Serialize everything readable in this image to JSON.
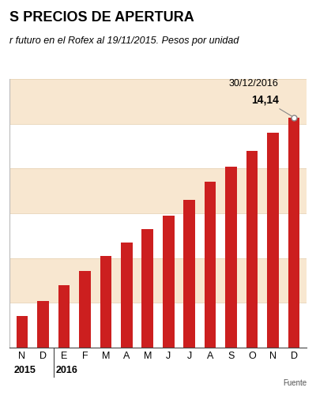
{
  "chart_data": {
    "type": "bar",
    "title": "S PRECIOS DE APERTURA",
    "subtitle": "r futuro en el Rofex al 19/11/2015. Pesos por unidad",
    "source": "Fuente",
    "categories": [
      "N",
      "D",
      "E",
      "F",
      "M",
      "A",
      "M",
      "J",
      "J",
      "A",
      "S",
      "O",
      "N",
      "D"
    ],
    "values": [
      9.7,
      10.05,
      10.4,
      10.72,
      11.05,
      11.35,
      11.65,
      11.95,
      12.3,
      12.7,
      13.05,
      13.4,
      13.8,
      14.14
    ],
    "value_labels": [
      null,
      null,
      null,
      null,
      null,
      null,
      null,
      null,
      null,
      null,
      null,
      null,
      null,
      "14,14"
    ],
    "data_labels": true,
    "annotation": "30/12/2016",
    "groups": [
      {
        "name": "2015",
        "start": 0
      },
      {
        "name": "2016",
        "start": 2
      }
    ],
    "color": "#cc1f1f",
    "ylim": [
      9,
      15
    ],
    "yticks": [
      9,
      10,
      11,
      12,
      13,
      14,
      15
    ],
    "grid": true,
    "tick_labels": "x"
  }
}
